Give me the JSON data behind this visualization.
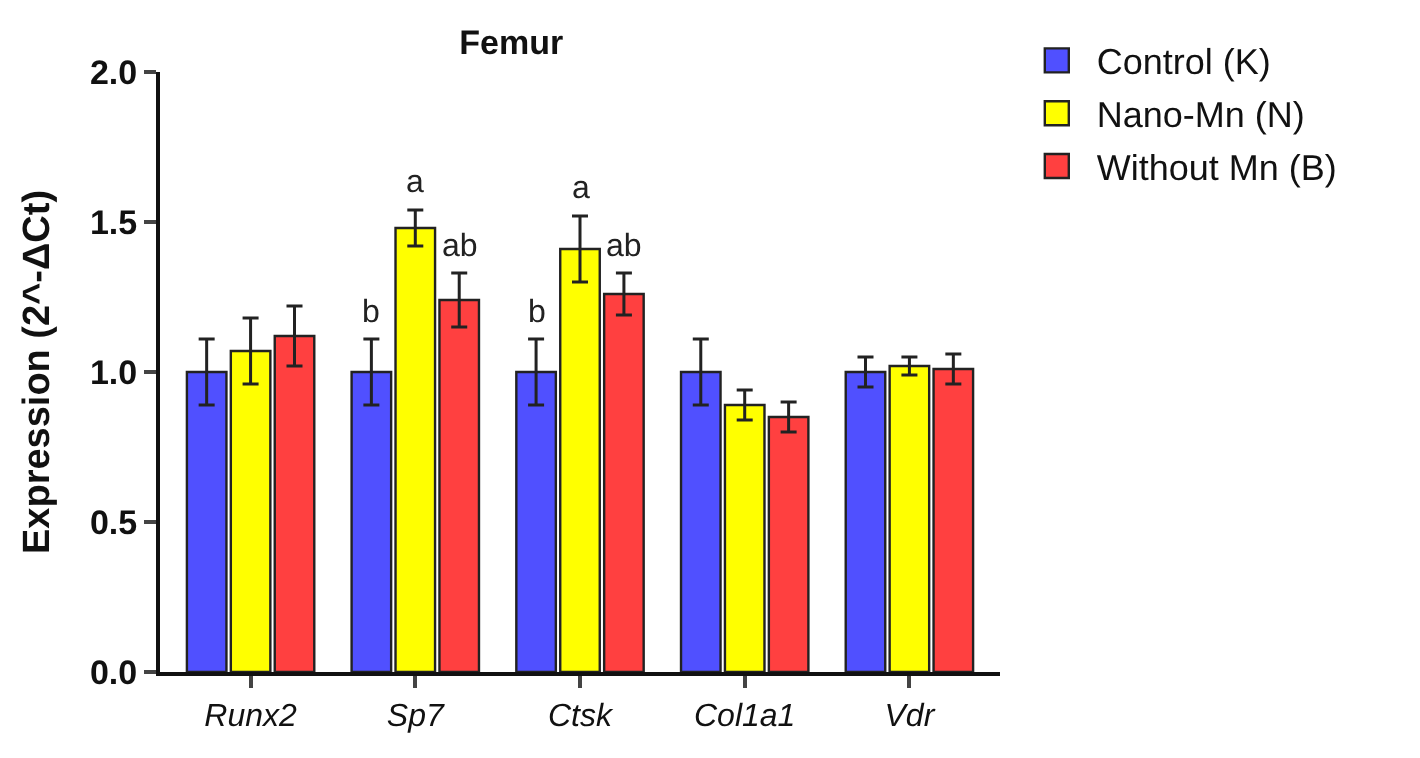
{
  "chart_data": {
    "type": "bar",
    "title": "Femur",
    "ylabel": "Expression (2^-ΔCt)",
    "categories": [
      "Runx2",
      "Sp7",
      "Ctsk",
      "Col1a1",
      "Vdr"
    ],
    "series": [
      {
        "name": "Control (K)",
        "color": "#5050ff",
        "values": [
          1.0,
          1.0,
          1.0,
          1.0,
          1.0
        ],
        "errors": [
          0.11,
          0.11,
          0.11,
          0.11,
          0.05
        ],
        "value_labels": [
          null,
          "b",
          "b",
          null,
          null
        ]
      },
      {
        "name": "Nano-Mn (N)",
        "color": "#ffff00",
        "values": [
          1.07,
          1.48,
          1.41,
          0.89,
          1.02
        ],
        "errors": [
          0.11,
          0.06,
          0.11,
          0.05,
          0.03
        ],
        "value_labels": [
          null,
          "a",
          "a",
          null,
          null
        ]
      },
      {
        "name": "Without Mn (B)",
        "color": "#ff4040",
        "values": [
          1.12,
          1.24,
          1.26,
          0.85,
          1.01
        ],
        "errors": [
          0.1,
          0.09,
          0.07,
          0.05,
          0.05
        ],
        "value_labels": [
          null,
          "ab",
          "ab",
          null,
          null
        ]
      }
    ],
    "ylim": [
      0,
      2.0
    ],
    "yticks": [
      {
        "value": 0,
        "label": "0.0"
      },
      {
        "value": 0.5,
        "label": "0.5"
      },
      {
        "value": 1.0,
        "label": "1.0"
      },
      {
        "value": 1.5,
        "label": "1.5"
      },
      {
        "value": 2.0,
        "label": "2.0"
      }
    ],
    "legend": "top right"
  }
}
